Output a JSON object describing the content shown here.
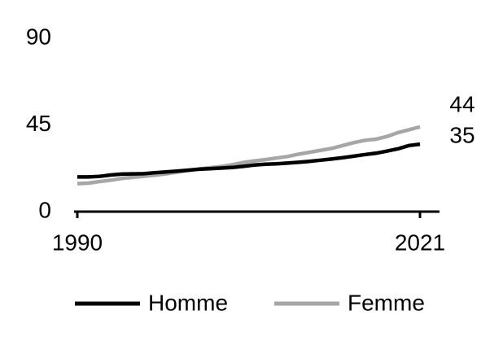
{
  "chart_data": {
    "type": "line",
    "x": [
      1990,
      1991,
      1992,
      1993,
      1994,
      1995,
      1996,
      1997,
      1998,
      1999,
      2000,
      2001,
      2002,
      2003,
      2004,
      2005,
      2006,
      2007,
      2008,
      2009,
      2010,
      2011,
      2012,
      2013,
      2014,
      2015,
      2016,
      2017,
      2018,
      2019,
      2020,
      2021
    ],
    "series": [
      {
        "name": "Homme",
        "color": "#000000",
        "values": [
          18,
          18,
          18.3,
          19,
          19.5,
          19.6,
          19.7,
          20.2,
          20.6,
          21,
          21.5,
          22,
          22.3,
          22.6,
          22.9,
          23.5,
          24.2,
          24.6,
          24.8,
          25.2,
          25.6,
          26.1,
          26.7,
          27.3,
          28,
          28.8,
          29.6,
          30.3,
          31.4,
          32.6,
          34.3,
          35
        ]
      },
      {
        "name": "Femme",
        "color": "#a6a6a6",
        "values": [
          14.5,
          14.8,
          15.6,
          16.3,
          17.2,
          17.8,
          18.3,
          18.9,
          19.6,
          20.5,
          21.4,
          22.2,
          22.8,
          23.4,
          24.3,
          25.5,
          26.3,
          27,
          27.8,
          28.6,
          29.8,
          30.8,
          31.8,
          32.8,
          34.3,
          35.8,
          37,
          37.6,
          39,
          41,
          42.5,
          44
        ]
      }
    ],
    "xlim": [
      1990,
      2021
    ],
    "xticks": [
      1990,
      2021
    ],
    "ylim": [
      0,
      90
    ],
    "yticks": [
      0,
      45,
      90
    ],
    "grid": false
  }
}
